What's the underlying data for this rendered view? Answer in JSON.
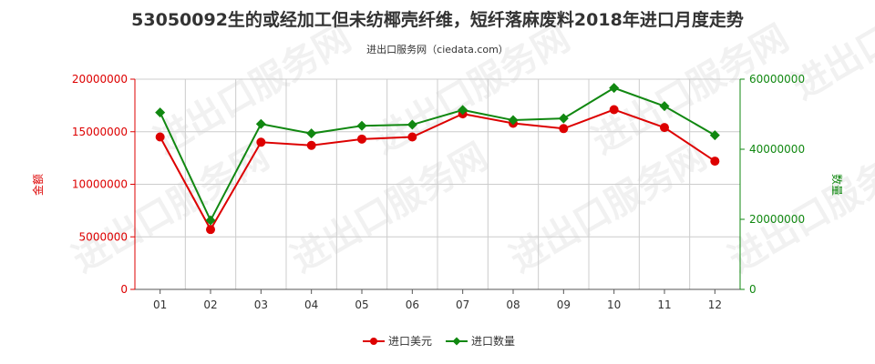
{
  "colors": {
    "left_axis": "#dd0000",
    "right_axis": "#118811",
    "series_value": "#dd0000",
    "series_quantity": "#118811",
    "grid": "#cccccc",
    "axis_line": "#555555",
    "text": "#333333"
  },
  "chart_data": {
    "type": "line",
    "title": "53050092生的或经加工但未纺椰壳纤维，短纤落麻废料2018年进口月度走势",
    "subtitle": "进出口服务网（ciedata.com）",
    "watermark": "进出口服务网",
    "categories": [
      "01",
      "02",
      "03",
      "04",
      "05",
      "06",
      "07",
      "08",
      "09",
      "10",
      "11",
      "12"
    ],
    "y_left": {
      "label": "金额",
      "range": [
        0,
        20000000
      ],
      "ticks": [
        0,
        5000000,
        10000000,
        15000000,
        20000000
      ],
      "tick_labels": [
        "0",
        "5000000",
        "10000000",
        "15000000",
        "20000000"
      ]
    },
    "y_right": {
      "label": "数量",
      "range": [
        0,
        60000000
      ],
      "ticks": [
        0,
        20000000,
        40000000,
        60000000
      ],
      "tick_labels": [
        "0",
        "20000000",
        "40000000",
        "60000000"
      ]
    },
    "grid": true,
    "legend_position": "bottom-center",
    "series": [
      {
        "name": "进口美元",
        "axis": "left",
        "marker": "circle",
        "color": "#dd0000",
        "values": [
          14500000,
          5700000,
          14000000,
          13700000,
          14300000,
          14500000,
          16700000,
          15800000,
          15300000,
          17100000,
          15400000,
          12200000
        ]
      },
      {
        "name": "进口数量",
        "axis": "right",
        "marker": "diamond",
        "color": "#118811",
        "values": [
          50500000,
          19700000,
          47200000,
          44500000,
          46700000,
          47000000,
          51200000,
          48300000,
          48800000,
          57500000,
          52300000,
          44000000
        ]
      }
    ]
  }
}
